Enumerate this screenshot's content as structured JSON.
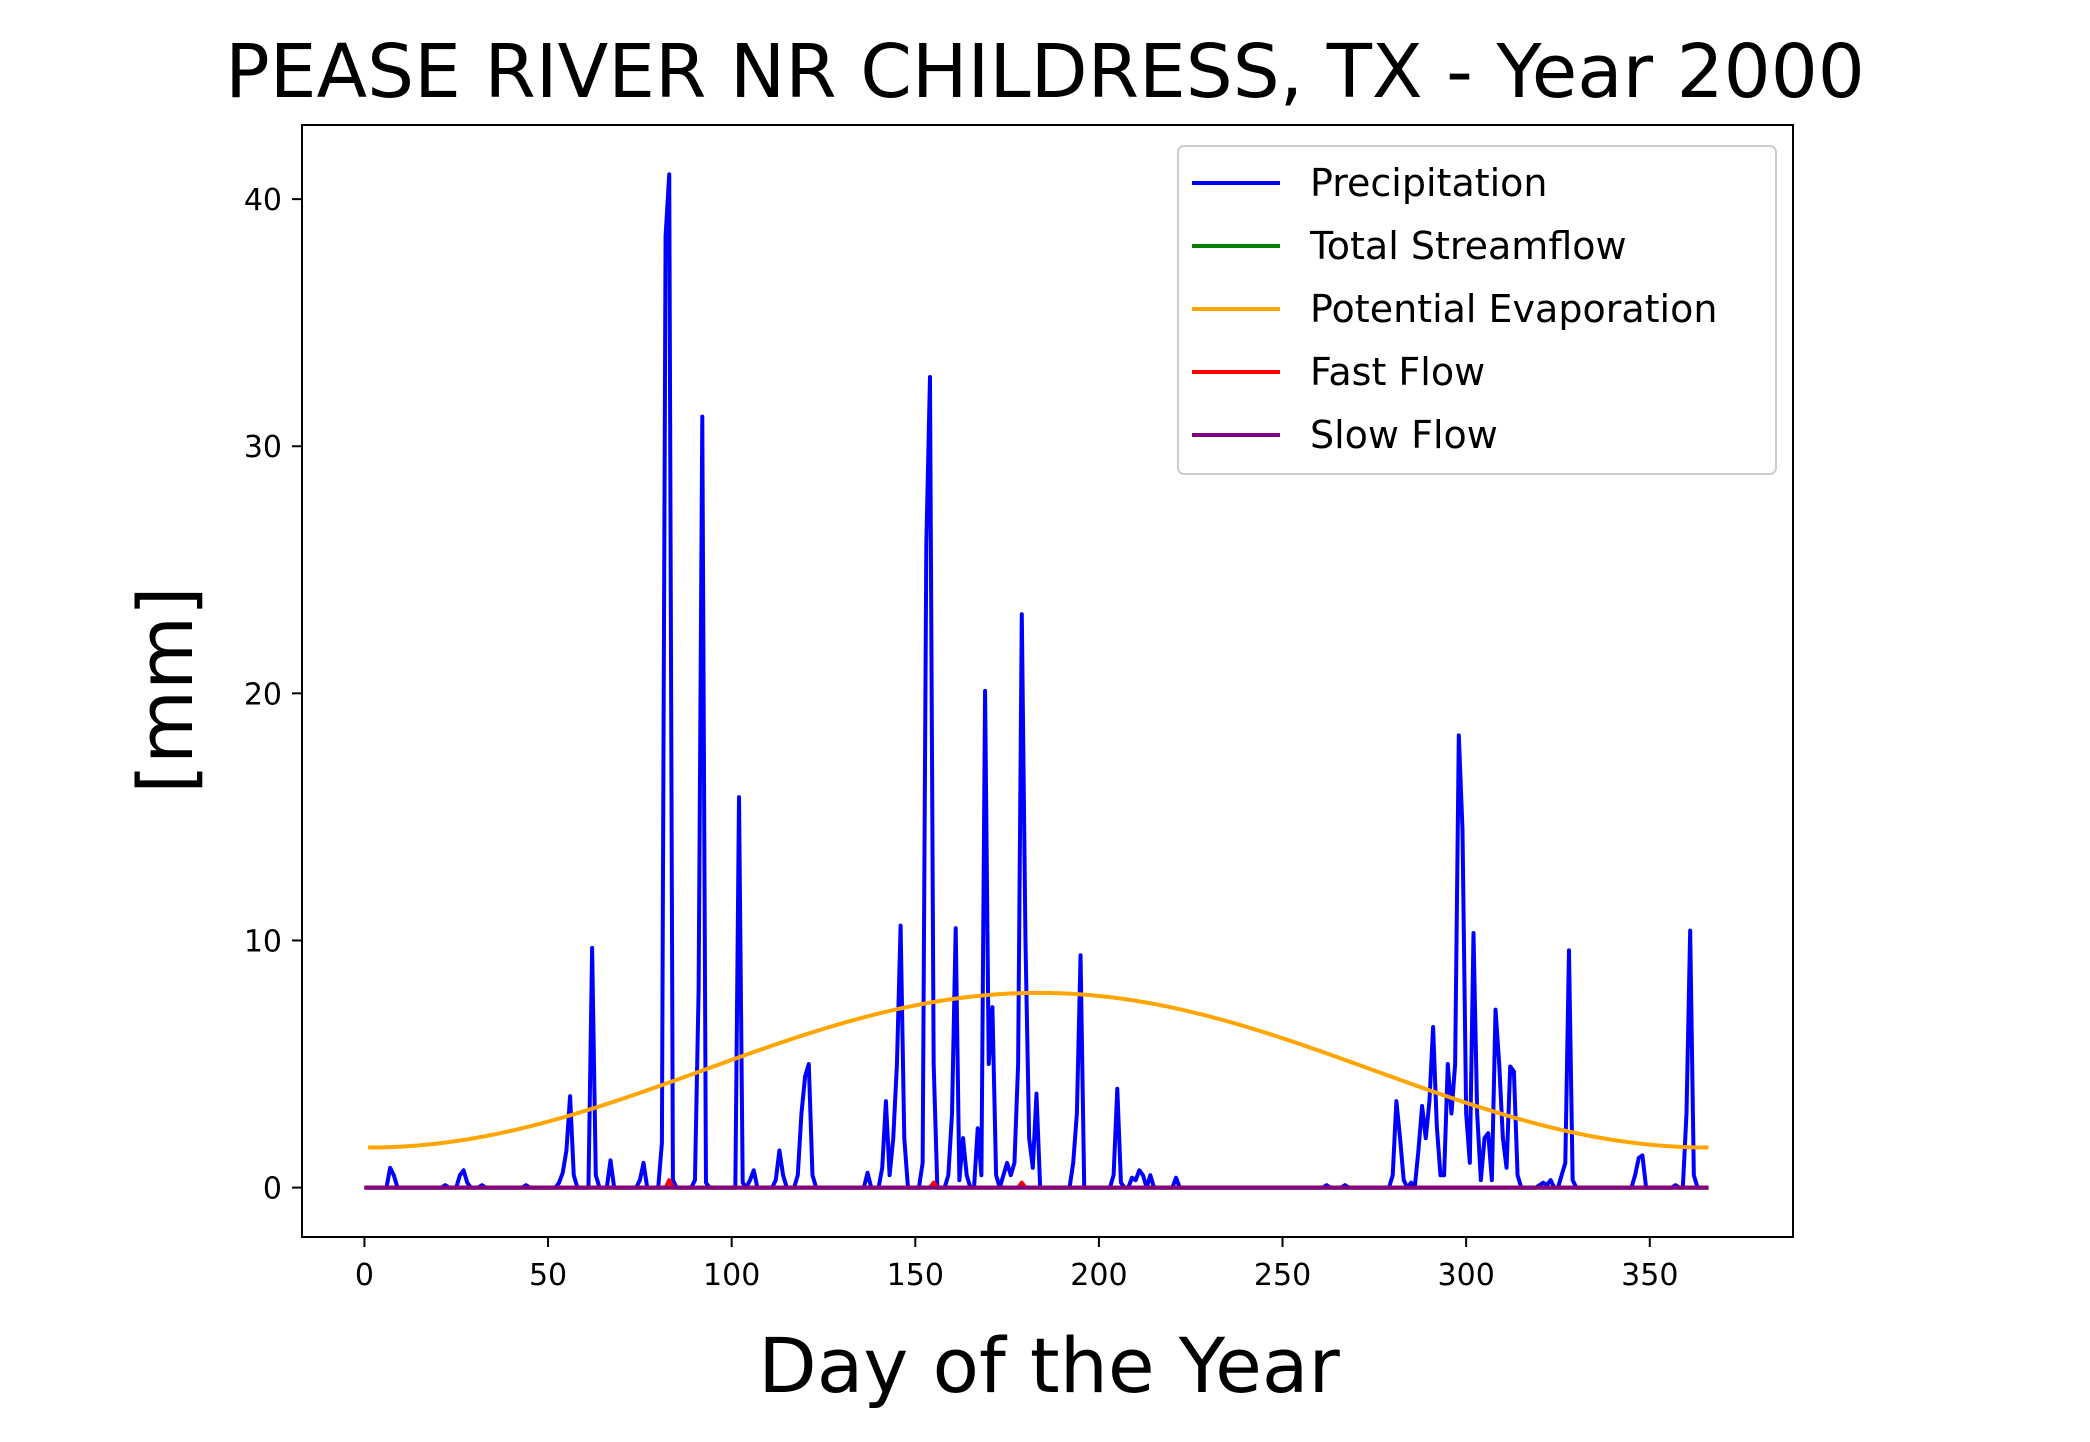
{
  "chart_data": {
    "type": "line",
    "title": "PEASE RIVER NR CHILDRESS, TX - Year 2000",
    "xlabel": "Day of the Year",
    "ylabel": "[mm]",
    "xlim": [
      -17,
      389
    ],
    "ylim": [
      -2,
      43
    ],
    "xticks": [
      0,
      50,
      100,
      150,
      200,
      250,
      300,
      350
    ],
    "yticks": [
      0,
      10,
      20,
      30,
      40
    ],
    "grid": false,
    "legend_position": "top-right",
    "series": [
      {
        "name": "Precipitation",
        "color": "#0000ff",
        "sparse_points": [
          [
            0,
            0
          ],
          [
            6,
            0
          ],
          [
            7,
            0.8
          ],
          [
            8,
            0.5
          ],
          [
            9,
            0
          ],
          [
            21,
            0
          ],
          [
            22,
            0.1
          ],
          [
            23,
            0
          ],
          [
            25,
            0
          ],
          [
            26,
            0.5
          ],
          [
            27,
            0.7
          ],
          [
            28,
            0.2
          ],
          [
            29,
            0
          ],
          [
            31,
            0
          ],
          [
            32,
            0.1
          ],
          [
            33,
            0
          ],
          [
            43,
            0
          ],
          [
            44,
            0.1
          ],
          [
            45,
            0
          ],
          [
            52,
            0
          ],
          [
            53,
            0.2
          ],
          [
            54,
            0.6
          ],
          [
            55,
            1.5
          ],
          [
            56,
            3.7
          ],
          [
            57,
            0.5
          ],
          [
            58,
            0
          ],
          [
            61,
            0
          ],
          [
            62,
            9.7
          ],
          [
            63,
            0.5
          ],
          [
            64,
            0
          ],
          [
            66,
            0
          ],
          [
            67,
            1.1
          ],
          [
            68,
            0
          ],
          [
            74,
            0
          ],
          [
            75,
            0.3
          ],
          [
            76,
            1.0
          ],
          [
            77,
            0
          ],
          [
            80,
            0
          ],
          [
            81,
            1.8
          ],
          [
            82,
            38.5
          ],
          [
            83,
            41.0
          ],
          [
            84,
            0.3
          ],
          [
            85,
            0
          ],
          [
            89,
            0
          ],
          [
            90,
            0.3
          ],
          [
            91,
            8.0
          ],
          [
            92,
            31.2
          ],
          [
            93,
            0.2
          ],
          [
            94,
            0
          ],
          [
            101,
            0
          ],
          [
            102,
            15.8
          ],
          [
            103,
            0.2
          ],
          [
            104,
            0
          ],
          [
            105,
            0.3
          ],
          [
            106,
            0.7
          ],
          [
            107,
            0
          ],
          [
            111,
            0
          ],
          [
            112,
            0.3
          ],
          [
            113,
            1.5
          ],
          [
            114,
            0.5
          ],
          [
            115,
            0
          ],
          [
            117,
            0
          ],
          [
            118,
            0.5
          ],
          [
            119,
            3.0
          ],
          [
            120,
            4.5
          ],
          [
            121,
            5.0
          ],
          [
            122,
            0.5
          ],
          [
            123,
            0
          ],
          [
            136,
            0
          ],
          [
            137,
            0.6
          ],
          [
            138,
            0
          ],
          [
            140,
            0
          ],
          [
            141,
            0.8
          ],
          [
            142,
            3.5
          ],
          [
            143,
            0.5
          ],
          [
            144,
            2.0
          ],
          [
            145,
            5.0
          ],
          [
            146,
            10.6
          ],
          [
            147,
            2.0
          ],
          [
            148,
            0
          ],
          [
            151,
            0
          ],
          [
            152,
            1.0
          ],
          [
            153,
            26.0
          ],
          [
            154,
            32.8
          ],
          [
            155,
            5.0
          ],
          [
            156,
            0
          ],
          [
            158,
            0
          ],
          [
            159,
            0.5
          ],
          [
            160,
            3.0
          ],
          [
            161,
            10.5
          ],
          [
            162,
            0.3
          ],
          [
            163,
            2.0
          ],
          [
            164,
            0.5
          ],
          [
            165,
            0
          ],
          [
            166,
            0
          ],
          [
            167,
            2.4
          ],
          [
            168,
            0.5
          ],
          [
            169,
            20.1
          ],
          [
            170,
            5.0
          ],
          [
            171,
            7.3
          ],
          [
            172,
            0.5
          ],
          [
            173,
            0
          ],
          [
            174,
            0.5
          ],
          [
            175,
            1.0
          ],
          [
            176,
            0.5
          ],
          [
            177,
            1.0
          ],
          [
            178,
            5.0
          ],
          [
            179,
            23.2
          ],
          [
            180,
            10.0
          ],
          [
            181,
            2.0
          ],
          [
            182,
            0.8
          ],
          [
            183,
            3.8
          ],
          [
            184,
            0
          ],
          [
            192,
            0
          ],
          [
            193,
            1.0
          ],
          [
            194,
            3.0
          ],
          [
            195,
            9.4
          ],
          [
            196,
            0
          ],
          [
            203,
            0
          ],
          [
            204,
            0.5
          ],
          [
            205,
            4.0
          ],
          [
            206,
            0.2
          ],
          [
            207,
            0
          ],
          [
            208,
            0
          ],
          [
            209,
            0.4
          ],
          [
            210,
            0.3
          ],
          [
            211,
            0.7
          ],
          [
            212,
            0.5
          ],
          [
            213,
            0
          ],
          [
            214,
            0.5
          ],
          [
            215,
            0
          ],
          [
            220,
            0
          ],
          [
            221,
            0.4
          ],
          [
            222,
            0
          ],
          [
            261,
            0
          ],
          [
            262,
            0.1
          ],
          [
            263,
            0
          ],
          [
            266,
            0
          ],
          [
            267,
            0.1
          ],
          [
            268,
            0
          ],
          [
            279,
            0
          ],
          [
            280,
            0.5
          ],
          [
            281,
            3.5
          ],
          [
            282,
            2.0
          ],
          [
            283,
            0.3
          ],
          [
            284,
            0
          ],
          [
            285,
            0.2
          ],
          [
            286,
            0
          ],
          [
            287,
            1.5
          ],
          [
            288,
            3.3
          ],
          [
            289,
            2.0
          ],
          [
            290,
            3.5
          ],
          [
            291,
            6.5
          ],
          [
            292,
            2.5
          ],
          [
            293,
            0.5
          ],
          [
            294,
            0.5
          ],
          [
            295,
            5.0
          ],
          [
            296,
            3.0
          ],
          [
            297,
            5.0
          ],
          [
            298,
            18.3
          ],
          [
            299,
            14.5
          ],
          [
            300,
            3.0
          ],
          [
            301,
            1.0
          ],
          [
            302,
            10.3
          ],
          [
            303,
            3.0
          ],
          [
            304,
            0.3
          ],
          [
            305,
            2.0
          ],
          [
            306,
            2.2
          ],
          [
            307,
            0.3
          ],
          [
            308,
            7.2
          ],
          [
            309,
            5.0
          ],
          [
            310,
            2.0
          ],
          [
            311,
            0.8
          ],
          [
            312,
            4.9
          ],
          [
            313,
            4.7
          ],
          [
            314,
            0.5
          ],
          [
            315,
            0
          ],
          [
            319,
            0
          ],
          [
            320,
            0.1
          ],
          [
            321,
            0.2
          ],
          [
            322,
            0.1
          ],
          [
            323,
            0.3
          ],
          [
            324,
            0
          ],
          [
            325,
            0
          ],
          [
            326,
            0.5
          ],
          [
            327,
            1.0
          ],
          [
            328,
            9.6
          ],
          [
            329,
            0.3
          ],
          [
            330,
            0
          ],
          [
            345,
            0
          ],
          [
            346,
            0.5
          ],
          [
            347,
            1.2
          ],
          [
            348,
            1.3
          ],
          [
            349,
            0
          ],
          [
            356,
            0
          ],
          [
            357,
            0.1
          ],
          [
            358,
            0
          ],
          [
            359,
            0
          ],
          [
            360,
            3.0
          ],
          [
            361,
            10.4
          ],
          [
            362,
            0.5
          ],
          [
            363,
            0
          ],
          [
            366,
            0
          ]
        ]
      },
      {
        "name": "Total Streamflow",
        "color": "#008000",
        "sparse_points": [
          [
            0,
            0
          ],
          [
            366,
            0
          ]
        ]
      },
      {
        "name": "Potential Evaporation",
        "color": "#ffa500",
        "formula": "4.75 - 3.13*cos(2*pi*(day-1)/365)",
        "x_range": [
          1,
          366
        ]
      },
      {
        "name": "Fast Flow",
        "color": "#ff0000",
        "sparse_points": [
          [
            0,
            0
          ],
          [
            81,
            0
          ],
          [
            83,
            0.3
          ],
          [
            85,
            0
          ],
          [
            152,
            0
          ],
          [
            155,
            0.2
          ],
          [
            158,
            0
          ],
          [
            177,
            0
          ],
          [
            179,
            0.2
          ],
          [
            181,
            0
          ],
          [
            366,
            0
          ]
        ]
      },
      {
        "name": "Slow Flow",
        "color": "#800080",
        "sparse_points": [
          [
            0,
            0
          ],
          [
            366,
            0
          ]
        ]
      }
    ]
  }
}
